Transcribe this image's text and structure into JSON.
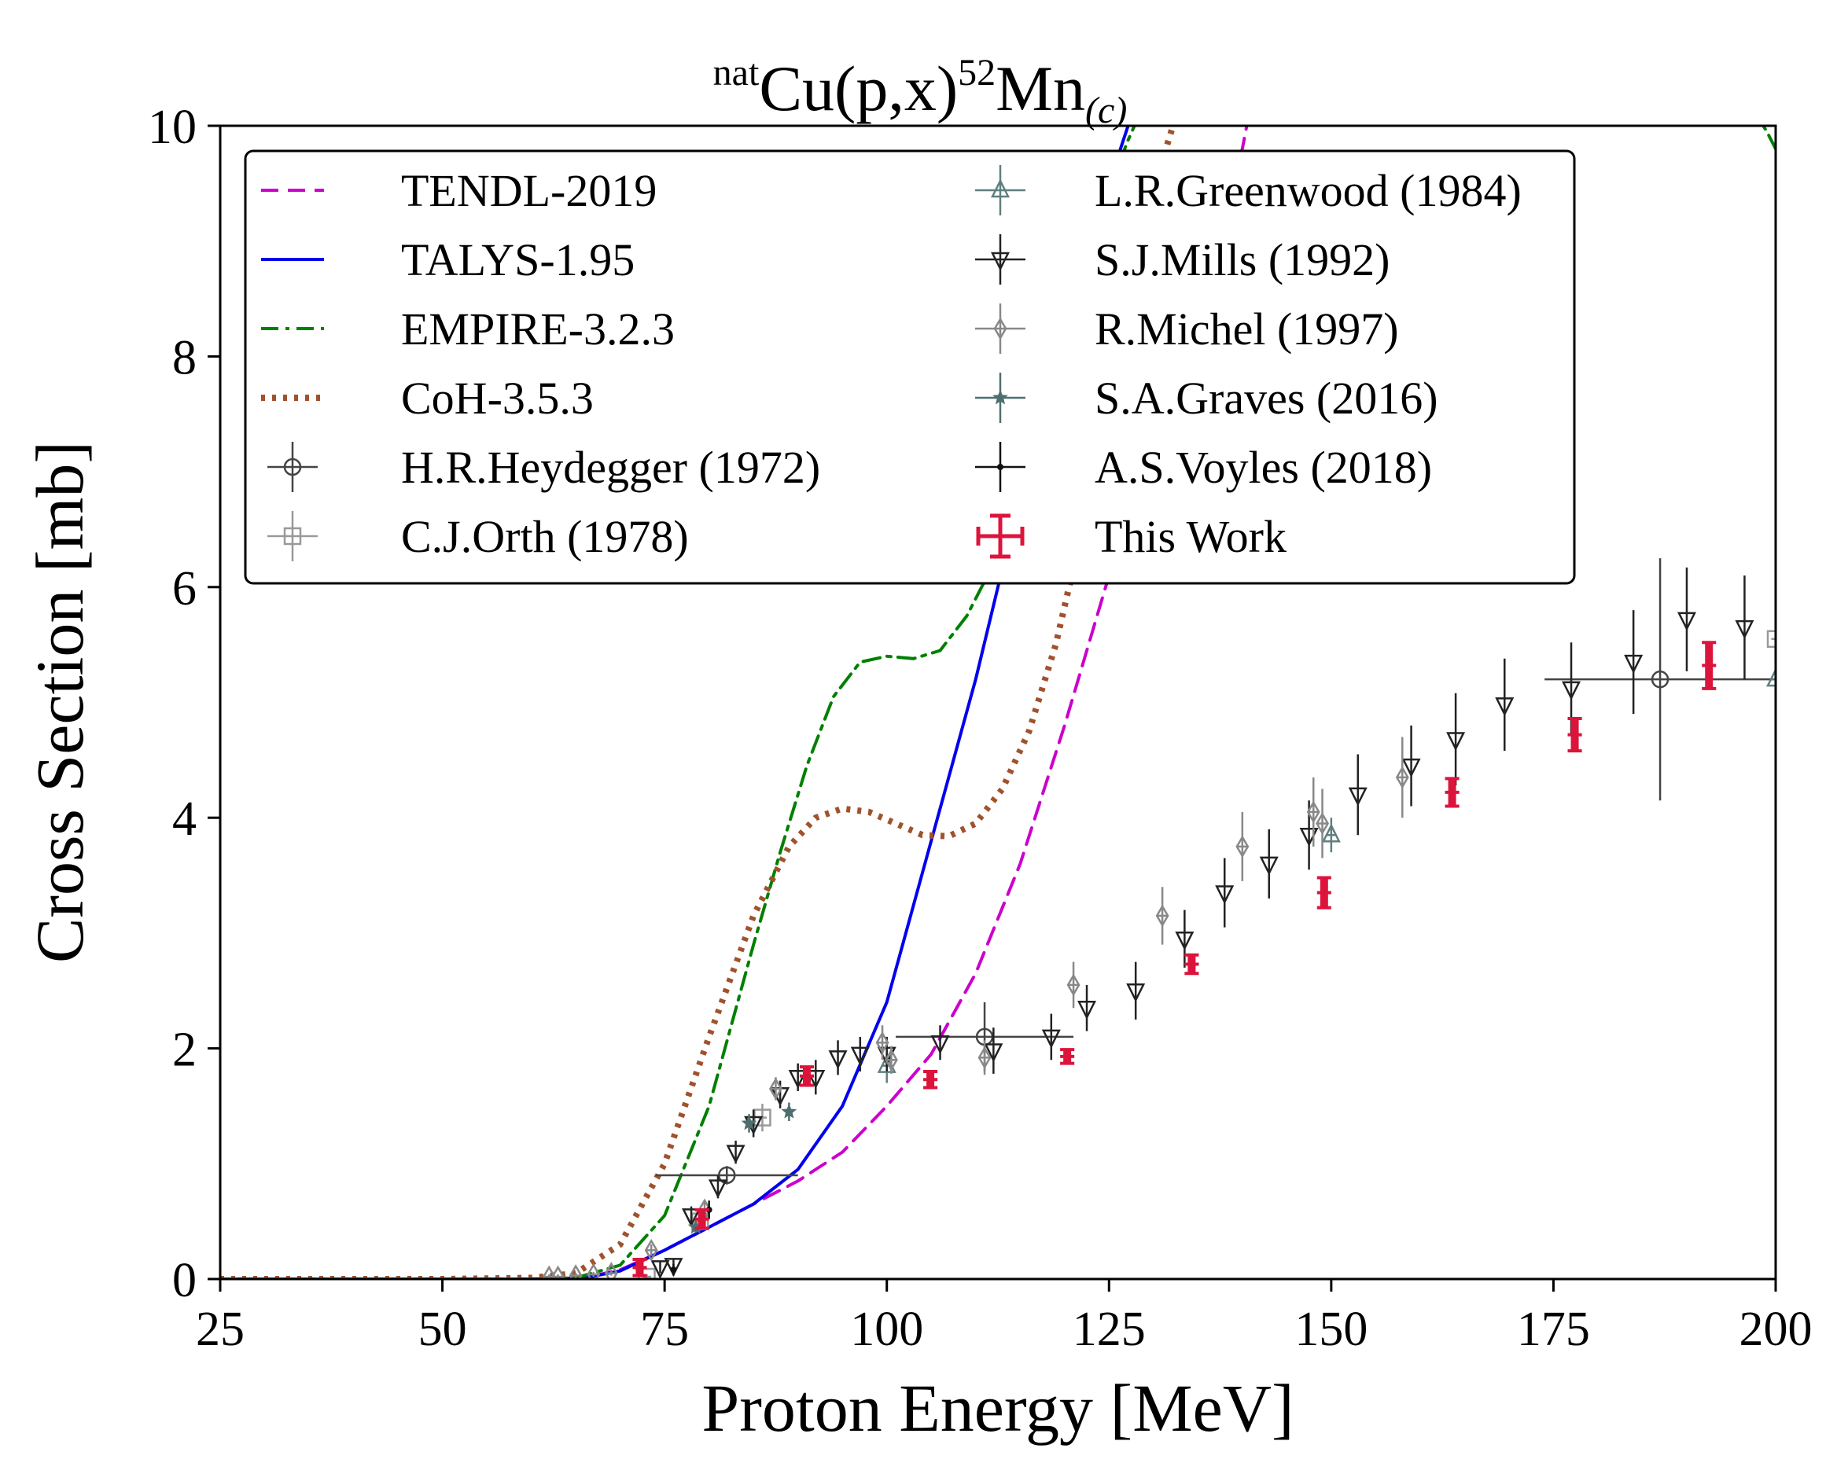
{
  "chart_data": {
    "type": "line",
    "title": {
      "pre": "nat",
      "element": "Cu(p,x)",
      "mass": "52",
      "product": "Mn",
      "sub": "(c)"
    },
    "xlabel": "Proton Energy [MeV]",
    "ylabel": "Cross Section [mb]",
    "xlim": [
      25,
      200
    ],
    "ylim": [
      0,
      10
    ],
    "xticks": [
      25,
      50,
      75,
      100,
      125,
      150,
      175,
      200
    ],
    "yticks": [
      0,
      2,
      4,
      6,
      8,
      10
    ],
    "grid": false,
    "legend_position": "top-left",
    "models": [
      {
        "name": "TENDL-2019",
        "color": "#cc00cc",
        "dash": "dashed",
        "x": [
          25,
          60,
          66,
          70,
          75,
          80,
          85,
          90,
          95,
          100,
          105,
          110,
          115,
          120,
          125,
          130,
          135,
          140,
          141
        ],
        "y": [
          0,
          0,
          0.01,
          0.08,
          0.25,
          0.45,
          0.65,
          0.85,
          1.1,
          1.5,
          1.95,
          2.65,
          3.6,
          4.8,
          6.1,
          7.4,
          8.7,
          9.8,
          10.2
        ]
      },
      {
        "name": "TALYS-1.95",
        "color": "#0000ee",
        "dash": "solid",
        "x": [
          25,
          60,
          66,
          70,
          75,
          80,
          85,
          90,
          95,
          100,
          105,
          110,
          115,
          120,
          125,
          128
        ],
        "y": [
          0,
          0,
          0.01,
          0.07,
          0.25,
          0.45,
          0.65,
          0.95,
          1.5,
          2.4,
          3.8,
          5.2,
          6.8,
          8.3,
          9.5,
          10.2
        ]
      },
      {
        "name": "EMPIRE-3.2.3",
        "color": "#008000",
        "dash": "dashdot",
        "x": [
          25,
          60,
          65,
          70,
          75,
          80,
          85,
          88,
          91,
          94,
          97,
          100,
          103,
          106,
          109,
          112,
          115,
          118,
          121,
          124,
          127,
          129,
          195,
          197,
          199,
          200
        ],
        "y": [
          0,
          0,
          0.01,
          0.12,
          0.55,
          1.5,
          2.9,
          3.7,
          4.45,
          5.05,
          5.35,
          5.4,
          5.38,
          5.45,
          5.75,
          6.2,
          6.9,
          7.7,
          8.5,
          9.2,
          9.85,
          10.2,
          10.2,
          10.2,
          9.95,
          9.8
        ]
      },
      {
        "name": "CoH-3.5.3",
        "color": "#a0522d",
        "dash": "dotted",
        "x": [
          25,
          50,
          60,
          65,
          70,
          75,
          80,
          85,
          89,
          92,
          95,
          98,
          101,
          104,
          107,
          110,
          113,
          116,
          119,
          122,
          125,
          128,
          131,
          133
        ],
        "y": [
          0,
          0,
          0.01,
          0.05,
          0.3,
          1.0,
          2.1,
          3.15,
          3.75,
          4.0,
          4.08,
          4.05,
          3.95,
          3.85,
          3.84,
          3.95,
          4.25,
          4.75,
          5.5,
          6.5,
          7.6,
          8.7,
          9.7,
          10.2
        ]
      }
    ],
    "experiments": [
      {
        "name": "H.R.Heydegger (1972)",
        "marker": "circle",
        "color": "#444444",
        "points": [
          {
            "x": 82,
            "y": 0.9,
            "ex": 8,
            "ey": 0.08
          },
          {
            "x": 111,
            "y": 2.1,
            "ex": 10,
            "ey": 0.3
          },
          {
            "x": 187,
            "y": 5.2,
            "ex": 13,
            "ey": 1.05
          }
        ]
      },
      {
        "name": "C.J.Orth (1978)",
        "marker": "square",
        "color": "#999999",
        "points": [
          {
            "x": 73,
            "y": 0.02,
            "ex": 0.5,
            "ey": 0.02
          },
          {
            "x": 79,
            "y": 0.5,
            "ex": 0.5,
            "ey": 0.08
          },
          {
            "x": 86,
            "y": 1.4,
            "ex": 0.5,
            "ey": 0.12
          },
          {
            "x": 200,
            "y": 5.55,
            "ex": 0.5,
            "ey": 0.15
          }
        ]
      },
      {
        "name": "L.R.Greenwood (1984)",
        "marker": "triangle-up",
        "color": "#5f7f7f",
        "points": [
          {
            "x": 100,
            "y": 1.85,
            "ex": 0.5,
            "ey": 0.15
          },
          {
            "x": 150,
            "y": 3.85,
            "ex": 0.5,
            "ey": 0.15
          },
          {
            "x": 200,
            "y": 5.2,
            "ex": 0.5,
            "ey": 0.1
          }
        ]
      },
      {
        "name": "S.J.Mills (1992)",
        "marker": "triangle-down",
        "color": "#222222",
        "points": [
          {
            "x": 74.5,
            "y": 0.1,
            "ey": 0.05
          },
          {
            "x": 76,
            "y": 0.12,
            "ey": 0.05
          },
          {
            "x": 78,
            "y": 0.55,
            "ey": 0.08
          },
          {
            "x": 81,
            "y": 0.8,
            "ey": 0.1
          },
          {
            "x": 83,
            "y": 1.1,
            "ey": 0.1
          },
          {
            "x": 85,
            "y": 1.35,
            "ey": 0.12
          },
          {
            "x": 88,
            "y": 1.6,
            "ey": 0.12
          },
          {
            "x": 90,
            "y": 1.75,
            "ey": 0.12
          },
          {
            "x": 92,
            "y": 1.75,
            "ey": 0.15
          },
          {
            "x": 94.5,
            "y": 1.92,
            "ey": 0.15
          },
          {
            "x": 97,
            "y": 1.95,
            "ey": 0.15
          },
          {
            "x": 100,
            "y": 1.95,
            "ey": 0.15
          },
          {
            "x": 106,
            "y": 2.05,
            "ey": 0.15
          },
          {
            "x": 112,
            "y": 1.98,
            "ey": 0.2
          },
          {
            "x": 118.5,
            "y": 2.1,
            "ey": 0.2
          },
          {
            "x": 122.5,
            "y": 2.35,
            "ey": 0.2
          },
          {
            "x": 128,
            "y": 2.5,
            "ey": 0.25
          },
          {
            "x": 133.5,
            "y": 2.95,
            "ey": 0.25
          },
          {
            "x": 138,
            "y": 3.35,
            "ey": 0.3
          },
          {
            "x": 143,
            "y": 3.6,
            "ey": 0.3
          },
          {
            "x": 147.5,
            "y": 3.85,
            "ey": 0.3
          },
          {
            "x": 153,
            "y": 4.2,
            "ey": 0.35
          },
          {
            "x": 159,
            "y": 4.45,
            "ey": 0.35
          },
          {
            "x": 164,
            "y": 4.68,
            "ey": 0.4
          },
          {
            "x": 169.5,
            "y": 4.98,
            "ey": 0.4
          },
          {
            "x": 177,
            "y": 5.12,
            "ey": 0.4
          },
          {
            "x": 184,
            "y": 5.35,
            "ey": 0.45
          },
          {
            "x": 190,
            "y": 5.72,
            "ey": 0.45
          },
          {
            "x": 196.5,
            "y": 5.65,
            "ey": 0.45
          }
        ]
      },
      {
        "name": "R.Michel (1997)",
        "marker": "diamond",
        "color": "#888888",
        "points": [
          {
            "x": 62,
            "y": 0.02,
            "ex": 0.5,
            "ey": 0.02
          },
          {
            "x": 63,
            "y": 0.02,
            "ex": 0.5,
            "ey": 0.02
          },
          {
            "x": 65,
            "y": 0.03,
            "ex": 0.5,
            "ey": 0.02
          },
          {
            "x": 67,
            "y": 0.04,
            "ex": 0.5,
            "ey": 0.02
          },
          {
            "x": 69,
            "y": 0.05,
            "ex": 0.5,
            "ey": 0.02
          },
          {
            "x": 73.5,
            "y": 0.25,
            "ex": 0.5,
            "ey": 0.05
          },
          {
            "x": 79.5,
            "y": 0.6,
            "ex": 0.5,
            "ey": 0.08
          },
          {
            "x": 87.5,
            "y": 1.65,
            "ex": 0.5,
            "ey": 0.1
          },
          {
            "x": 99.5,
            "y": 2.05,
            "ex": 0.5,
            "ey": 0.15
          },
          {
            "x": 100.5,
            "y": 1.9,
            "ex": 0.5,
            "ey": 0.12
          },
          {
            "x": 111,
            "y": 1.92,
            "ex": 0.5,
            "ey": 0.15
          },
          {
            "x": 121,
            "y": 2.55,
            "ex": 0.5,
            "ey": 0.2
          },
          {
            "x": 131,
            "y": 3.15,
            "ex": 0.5,
            "ey": 0.25
          },
          {
            "x": 140,
            "y": 3.75,
            "ex": 0.5,
            "ey": 0.3
          },
          {
            "x": 148,
            "y": 4.05,
            "ex": 0.5,
            "ey": 0.3
          },
          {
            "x": 149,
            "y": 3.95,
            "ex": 0.5,
            "ey": 0.3
          },
          {
            "x": 158,
            "y": 4.35,
            "ex": 0.5,
            "ey": 0.35
          }
        ]
      },
      {
        "name": "S.A.Graves (2016)",
        "marker": "star",
        "color": "#4f6f6f",
        "points": [
          {
            "x": 78.5,
            "y": 0.45,
            "ey": 0.05
          },
          {
            "x": 84.5,
            "y": 1.35,
            "ey": 0.08
          },
          {
            "x": 89,
            "y": 1.45,
            "ey": 0.08
          }
        ]
      },
      {
        "name": "A.S.Voyles (2018)",
        "marker": "dot",
        "color": "#111111",
        "points": [
          {
            "x": 72,
            "y": 0.1,
            "ey": 0.05
          },
          {
            "x": 76,
            "y": 0.08,
            "ey": 0.05
          },
          {
            "x": 80,
            "y": 0.6,
            "ey": 0.08
          }
        ]
      },
      {
        "name": "This Work",
        "marker": "errorbar",
        "color": "#dc143c",
        "points": [
          {
            "x": 72.2,
            "y": 0.1,
            "ex": 0.8,
            "ey": 0.07
          },
          {
            "x": 79.2,
            "y": 0.52,
            "ex": 0.8,
            "ey": 0.08
          },
          {
            "x": 91.0,
            "y": 1.76,
            "ex": 0.8,
            "ey": 0.08
          },
          {
            "x": 104.9,
            "y": 1.73,
            "ex": 0.8,
            "ey": 0.07
          },
          {
            "x": 120.3,
            "y": 1.93,
            "ex": 0.8,
            "ey": 0.06
          },
          {
            "x": 134.3,
            "y": 2.73,
            "ex": 0.8,
            "ey": 0.08
          },
          {
            "x": 149.2,
            "y": 3.35,
            "ex": 0.8,
            "ey": 0.13
          },
          {
            "x": 163.6,
            "y": 4.22,
            "ex": 0.8,
            "ey": 0.12
          },
          {
            "x": 177.4,
            "y": 4.72,
            "ex": 0.8,
            "ey": 0.14
          },
          {
            "x": 192.5,
            "y": 5.32,
            "ex": 0.8,
            "ey": 0.2
          }
        ]
      }
    ]
  }
}
